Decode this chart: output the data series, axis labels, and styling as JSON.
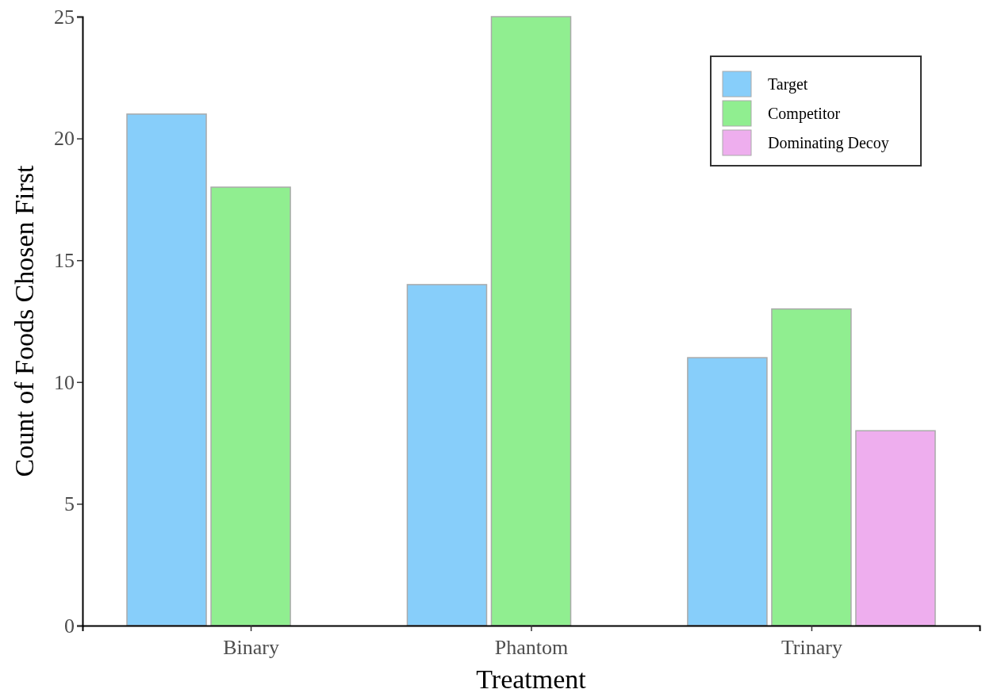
{
  "chart_data": {
    "type": "bar",
    "xlabel": "Treatment",
    "ylabel": "Count of Foods Chosen First",
    "categories": [
      "Binary",
      "Phantom",
      "Trinary"
    ],
    "series": [
      {
        "name": "Target",
        "color": "#87cefa",
        "values": [
          21,
          14,
          11
        ]
      },
      {
        "name": "Competitor",
        "color": "#90ee90",
        "values": [
          18,
          25,
          13
        ]
      },
      {
        "name": "Dominating Decoy",
        "color": "#eeaeee",
        "values": [
          null,
          null,
          8
        ]
      }
    ],
    "ylim": [
      0,
      25
    ],
    "yticks": [
      0,
      5,
      10,
      15,
      20,
      25
    ],
    "grid": false,
    "legend": "top right"
  }
}
